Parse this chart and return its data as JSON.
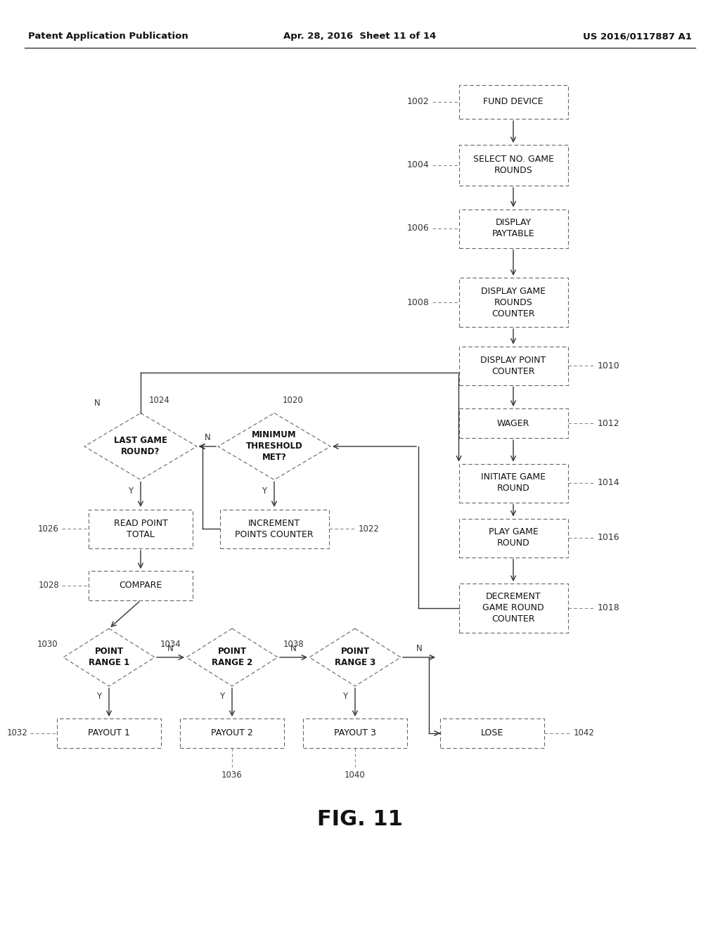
{
  "title_left": "Patent Application Publication",
  "title_mid": "Apr. 28, 2016  Sheet 11 of 14",
  "title_right": "US 2016/0117887 A1",
  "fig_label": "FIG. 11",
  "background": "#ffffff"
}
